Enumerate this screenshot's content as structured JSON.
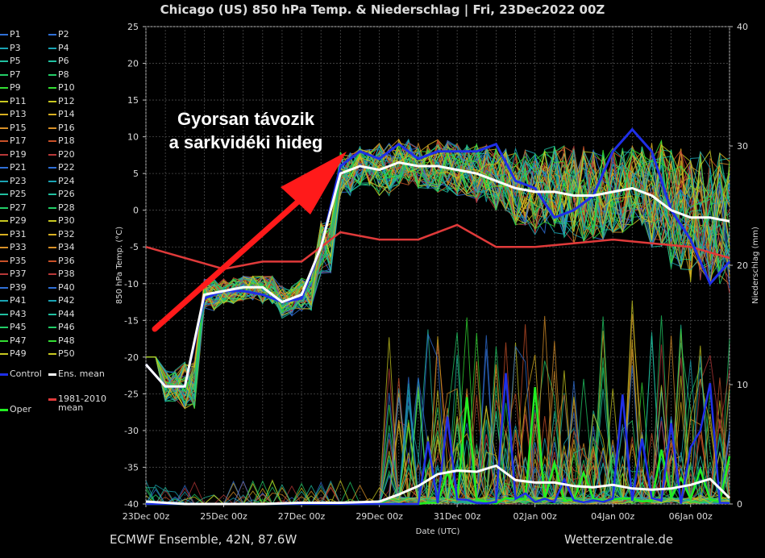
{
  "title": "Chicago  (US)  850 hPa Temp. & Niederschlag | Fri, 23Dec2022 00Z",
  "footer_left": "ECMWF Ensemble, 42N, 87.6W",
  "footer_right": "Wetterzentrale.de",
  "annotation": {
    "line1": "Gyorsan távozik",
    "line2": "a sarkvidéki hideg",
    "arrow_color": "#ff1a1a"
  },
  "legend": {
    "members": [
      "P1",
      "P2",
      "P3",
      "P4",
      "P5",
      "P6",
      "P7",
      "P8",
      "P9",
      "P10",
      "P11",
      "P12",
      "P13",
      "P14",
      "P15",
      "P16",
      "P17",
      "P18",
      "P19",
      "P20",
      "P21",
      "P22",
      "P23",
      "P24",
      "P25",
      "P26",
      "P27",
      "P28",
      "P29",
      "P30",
      "P31",
      "P32",
      "P33",
      "P34",
      "P35",
      "P36",
      "P37",
      "P38",
      "P39",
      "P40",
      "P41",
      "P42",
      "P43",
      "P44",
      "P45",
      "P46",
      "P47",
      "P48",
      "P49",
      "P50"
    ],
    "member_colors": [
      "#2f6fd6",
      "#2f6fd6",
      "#1aa3b3",
      "#1aa3b3",
      "#20c0a0",
      "#20c0a0",
      "#22cc66",
      "#22cc66",
      "#33dd33",
      "#33dd33",
      "#c8c820",
      "#c8c820",
      "#d8b020",
      "#d8b020",
      "#d89028",
      "#d89028",
      "#c85028",
      "#c85028",
      "#b83838",
      "#b83838",
      "#2f6fd6",
      "#2f6fd6",
      "#1aa3b3",
      "#1aa3b3",
      "#20c0a0",
      "#20c0a0",
      "#22cc66",
      "#22cc66",
      "#c8c820",
      "#c8c820",
      "#d8b020",
      "#d8b020",
      "#d89028",
      "#d89028",
      "#c85028",
      "#c85028",
      "#b83838",
      "#b83838",
      "#2f6fd6",
      "#2f6fd6",
      "#1aa3b3",
      "#1aa3b3",
      "#20c0a0",
      "#20c0a0",
      "#22cc66",
      "#22cc66",
      "#33dd33",
      "#33dd33",
      "#c8c820",
      "#c8c820"
    ],
    "control": "Control",
    "ens_mean": "Ens. mean",
    "oper": "Oper",
    "clim_line1": "1981-2010",
    "clim_line2": "mean",
    "colors": {
      "control": "#1f2fe8",
      "ens_mean": "#ffffff",
      "oper": "#22ee22",
      "clim": "#e03a3a"
    }
  },
  "chart_data": {
    "type": "line",
    "xlabel": "Date (UTC)",
    "ylabel": "850 hPa Temp. (°C)",
    "y2label": "Niederschlag (mm)",
    "ylim": [
      -40,
      25
    ],
    "y2lim": [
      0,
      40
    ],
    "yticks": [
      "25",
      "20",
      "15",
      "10",
      "5",
      "0",
      "-5",
      "-10",
      "-15",
      "-20",
      "-25",
      "-30",
      "-35",
      "-40"
    ],
    "y2ticks": [
      "40",
      "30",
      "20",
      "10",
      "0"
    ],
    "xticks": [
      "23Dec 00z",
      "25Dec 00z",
      "27Dec 00z",
      "29Dec 00z",
      "31Dec 00z",
      "02Jan 00z",
      "04Jan 00z",
      "06Jan 00z"
    ],
    "x_days_range": [
      0,
      15
    ],
    "grid": true,
    "series": [
      {
        "name": "Control",
        "x": [
          0,
          0.5,
          1,
          1.5,
          2,
          2.5,
          3,
          3.5,
          4,
          4.5,
          5,
          5.5,
          6,
          6.5,
          7,
          7.5,
          8,
          8.5,
          9,
          9.5,
          10,
          10.5,
          11,
          11.5,
          12,
          12.5,
          13,
          13.5,
          14,
          14.5,
          15
        ],
        "y": [
          -21,
          -24,
          -24,
          -12,
          -11,
          -11,
          -11.5,
          -12.5,
          -12,
          -5,
          6,
          8,
          7,
          9,
          7,
          8,
          8,
          8,
          9,
          4,
          3,
          -1,
          0,
          2,
          8,
          11,
          8,
          0,
          -4,
          -10,
          -7
        ]
      },
      {
        "name": "Ens. mean",
        "x": [
          0,
          0.5,
          1,
          1.5,
          2,
          2.5,
          3,
          3.5,
          4,
          4.5,
          5,
          5.5,
          6,
          6.5,
          7,
          7.5,
          8,
          8.5,
          9,
          9.5,
          10,
          10.5,
          11,
          11.5,
          12,
          12.5,
          13,
          13.5,
          14,
          14.5,
          15
        ],
        "y": [
          -21,
          -24,
          -24,
          -11.5,
          -11,
          -10.5,
          -10.5,
          -12.5,
          -11.5,
          -5,
          5,
          6,
          5.5,
          6.5,
          6,
          6,
          5.5,
          5,
          4,
          3,
          2.5,
          2.5,
          2,
          2,
          2.5,
          3,
          2,
          0,
          -1,
          -1,
          -1.5
        ]
      },
      {
        "name": "1981-2010 mean",
        "x": [
          0,
          1,
          2,
          3,
          4,
          5,
          6,
          7,
          8,
          9,
          10,
          11,
          12,
          13,
          14,
          15
        ],
        "y": [
          -5,
          -6.5,
          -8,
          -7,
          -7,
          -3,
          -4,
          -4,
          -2,
          -5,
          -5,
          -4.5,
          -4,
          -4.5,
          -5,
          -6.5
        ]
      }
    ],
    "ensemble_spread": {
      "count": 50,
      "y_low": [
        -20,
        -26,
        -27,
        -14,
        -13,
        -13,
        -14,
        -15,
        -14,
        -9,
        2,
        3,
        2,
        3,
        3,
        2,
        2,
        1,
        0,
        -2,
        -4,
        -5,
        -5,
        -4,
        -3,
        -2,
        -5,
        -8,
        -10,
        -12,
        -14
      ],
      "y_high": [
        -19,
        -21,
        -19,
        -9,
        -9,
        -9,
        -9,
        -10,
        -9,
        -1,
        9,
        9,
        10,
        10,
        10,
        10,
        10,
        10,
        10,
        10,
        9,
        9,
        10,
        10,
        11,
        11,
        12,
        11,
        10,
        9,
        9
      ]
    },
    "precip_mean": {
      "x": [
        0,
        1,
        2,
        3,
        4,
        5,
        6,
        6.5,
        7,
        7.5,
        8,
        8.5,
        9,
        9.5,
        10,
        10.5,
        11,
        11.5,
        12,
        12.5,
        13,
        13.5,
        14,
        14.5,
        15
      ],
      "y_mm": [
        0.2,
        0,
        0,
        0,
        0.1,
        0.1,
        0.2,
        0.8,
        1.5,
        2.5,
        2.8,
        2.7,
        3.2,
        2,
        1.8,
        1.8,
        1.5,
        1.4,
        1.6,
        1.3,
        1.2,
        1.3,
        1.6,
        2.1,
        0.5
      ]
    }
  }
}
